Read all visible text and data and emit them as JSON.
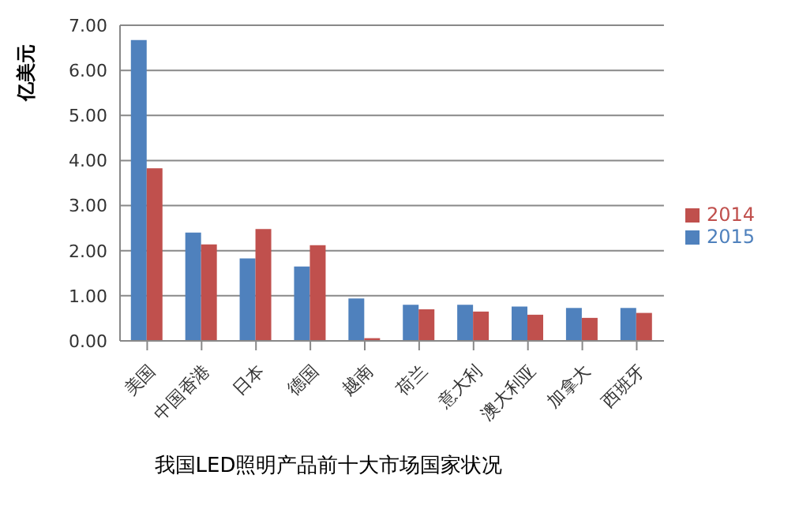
{
  "chart_data": {
    "type": "bar",
    "title": "我国LED照明产品前十大市场国家状况",
    "ylabel": "亿美元",
    "categories": [
      "美国",
      "中国香港",
      "日本",
      "德国",
      "越南",
      "荷兰",
      "意大利",
      "澳大利亚",
      "加拿大",
      "西班牙"
    ],
    "series": [
      {
        "name": "2015",
        "color": "#4f81bd",
        "values": [
          6.67,
          2.4,
          1.83,
          1.65,
          0.94,
          0.8,
          0.8,
          0.76,
          0.73,
          0.73
        ]
      },
      {
        "name": "2014",
        "color": "#c0504d",
        "values": [
          3.83,
          2.14,
          2.48,
          2.12,
          0.06,
          0.7,
          0.65,
          0.58,
          0.51,
          0.62
        ]
      }
    ],
    "ylim": [
      0,
      7
    ],
    "yticks": [
      {
        "value": 0,
        "label": "0.00"
      },
      {
        "value": 1,
        "label": "1.00"
      },
      {
        "value": 2,
        "label": "2.00"
      },
      {
        "value": 3,
        "label": "3.00"
      },
      {
        "value": 4,
        "label": "4.00"
      },
      {
        "value": 5,
        "label": "5.00"
      },
      {
        "value": 6,
        "label": "6.00"
      },
      {
        "value": 7,
        "label": "7.00"
      }
    ],
    "grid": "y",
    "legend": "right"
  }
}
